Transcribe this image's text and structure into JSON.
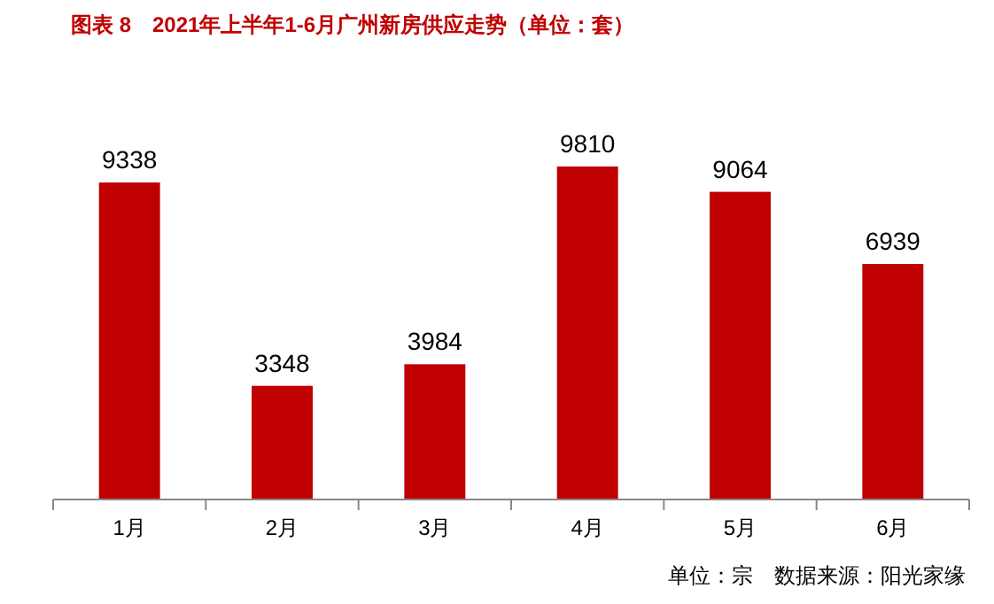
{
  "chart_data": {
    "type": "bar",
    "title": "图表 8　2021年上半年1-6月广州新房供应走势（单位：套）",
    "categories": [
      "1月",
      "2月",
      "3月",
      "4月",
      "5月",
      "6月"
    ],
    "values": [
      9338,
      3348,
      3984,
      9810,
      9064,
      6939
    ],
    "color": "#c00000",
    "data_labels": true,
    "annotations": [
      "单位：宗　数据来源：阳光家缘"
    ]
  }
}
